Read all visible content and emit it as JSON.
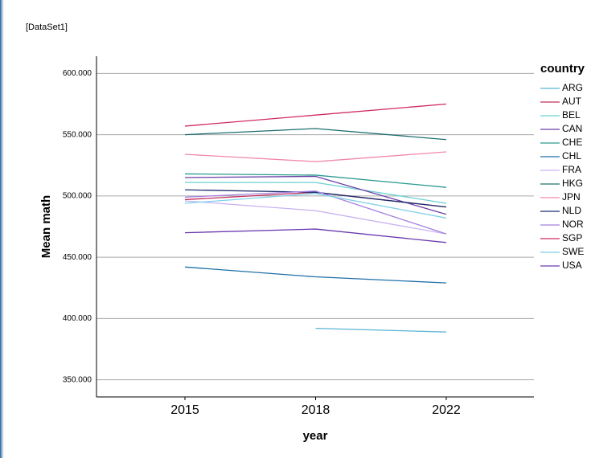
{
  "dataset_label": "[DataSet1]",
  "chart_data": {
    "type": "line",
    "x_label": "year",
    "y_label": "Mean math",
    "legend_title": "country",
    "legend_position": "right",
    "grid": true,
    "categories": [
      "2015",
      "2018",
      "2022"
    ],
    "ylim": [
      336,
      614
    ],
    "yticks": [
      {
        "value": 350,
        "label": "350.000"
      },
      {
        "value": 400,
        "label": "400.000"
      },
      {
        "value": 450,
        "label": "450.000"
      },
      {
        "value": 500,
        "label": "500.000"
      },
      {
        "value": 550,
        "label": "550.000"
      },
      {
        "value": 600,
        "label": "600.000"
      }
    ],
    "series": [
      {
        "name": "ARG",
        "color": "#5ab4d6",
        "values": [
          null,
          392,
          389
        ]
      },
      {
        "name": "AUT",
        "color": "#c0305a",
        "values": [
          497,
          503,
          491
        ]
      },
      {
        "name": "BEL",
        "color": "#6ad0d0",
        "values": [
          511,
          511,
          494
        ]
      },
      {
        "name": "CAN",
        "color": "#6a3fa8",
        "values": [
          515,
          516,
          485
        ]
      },
      {
        "name": "CHE",
        "color": "#2a9a8e",
        "values": [
          518,
          517,
          507
        ]
      },
      {
        "name": "CHL",
        "color": "#1f6fa8",
        "values": [
          442,
          434,
          429
        ]
      },
      {
        "name": "FRA",
        "color": "#c9b3f0",
        "values": [
          496,
          488,
          469
        ]
      },
      {
        "name": "HKG",
        "color": "#1d6e70",
        "values": [
          550,
          555,
          546
        ]
      },
      {
        "name": "JPN",
        "color": "#f08aa8",
        "values": [
          534,
          528,
          536
        ]
      },
      {
        "name": "NLD",
        "color": "#1b2f6e",
        "values": [
          505,
          503,
          491
        ]
      },
      {
        "name": "NOR",
        "color": "#a47fe0",
        "values": [
          499,
          504,
          469
        ]
      },
      {
        "name": "SGP",
        "color": "#d02a5e",
        "values": [
          557,
          566,
          575
        ]
      },
      {
        "name": "SWE",
        "color": "#7fd0e8",
        "values": [
          494,
          502,
          482
        ]
      },
      {
        "name": "USA",
        "color": "#6b3ab0",
        "values": [
          470,
          473,
          462
        ]
      }
    ]
  }
}
